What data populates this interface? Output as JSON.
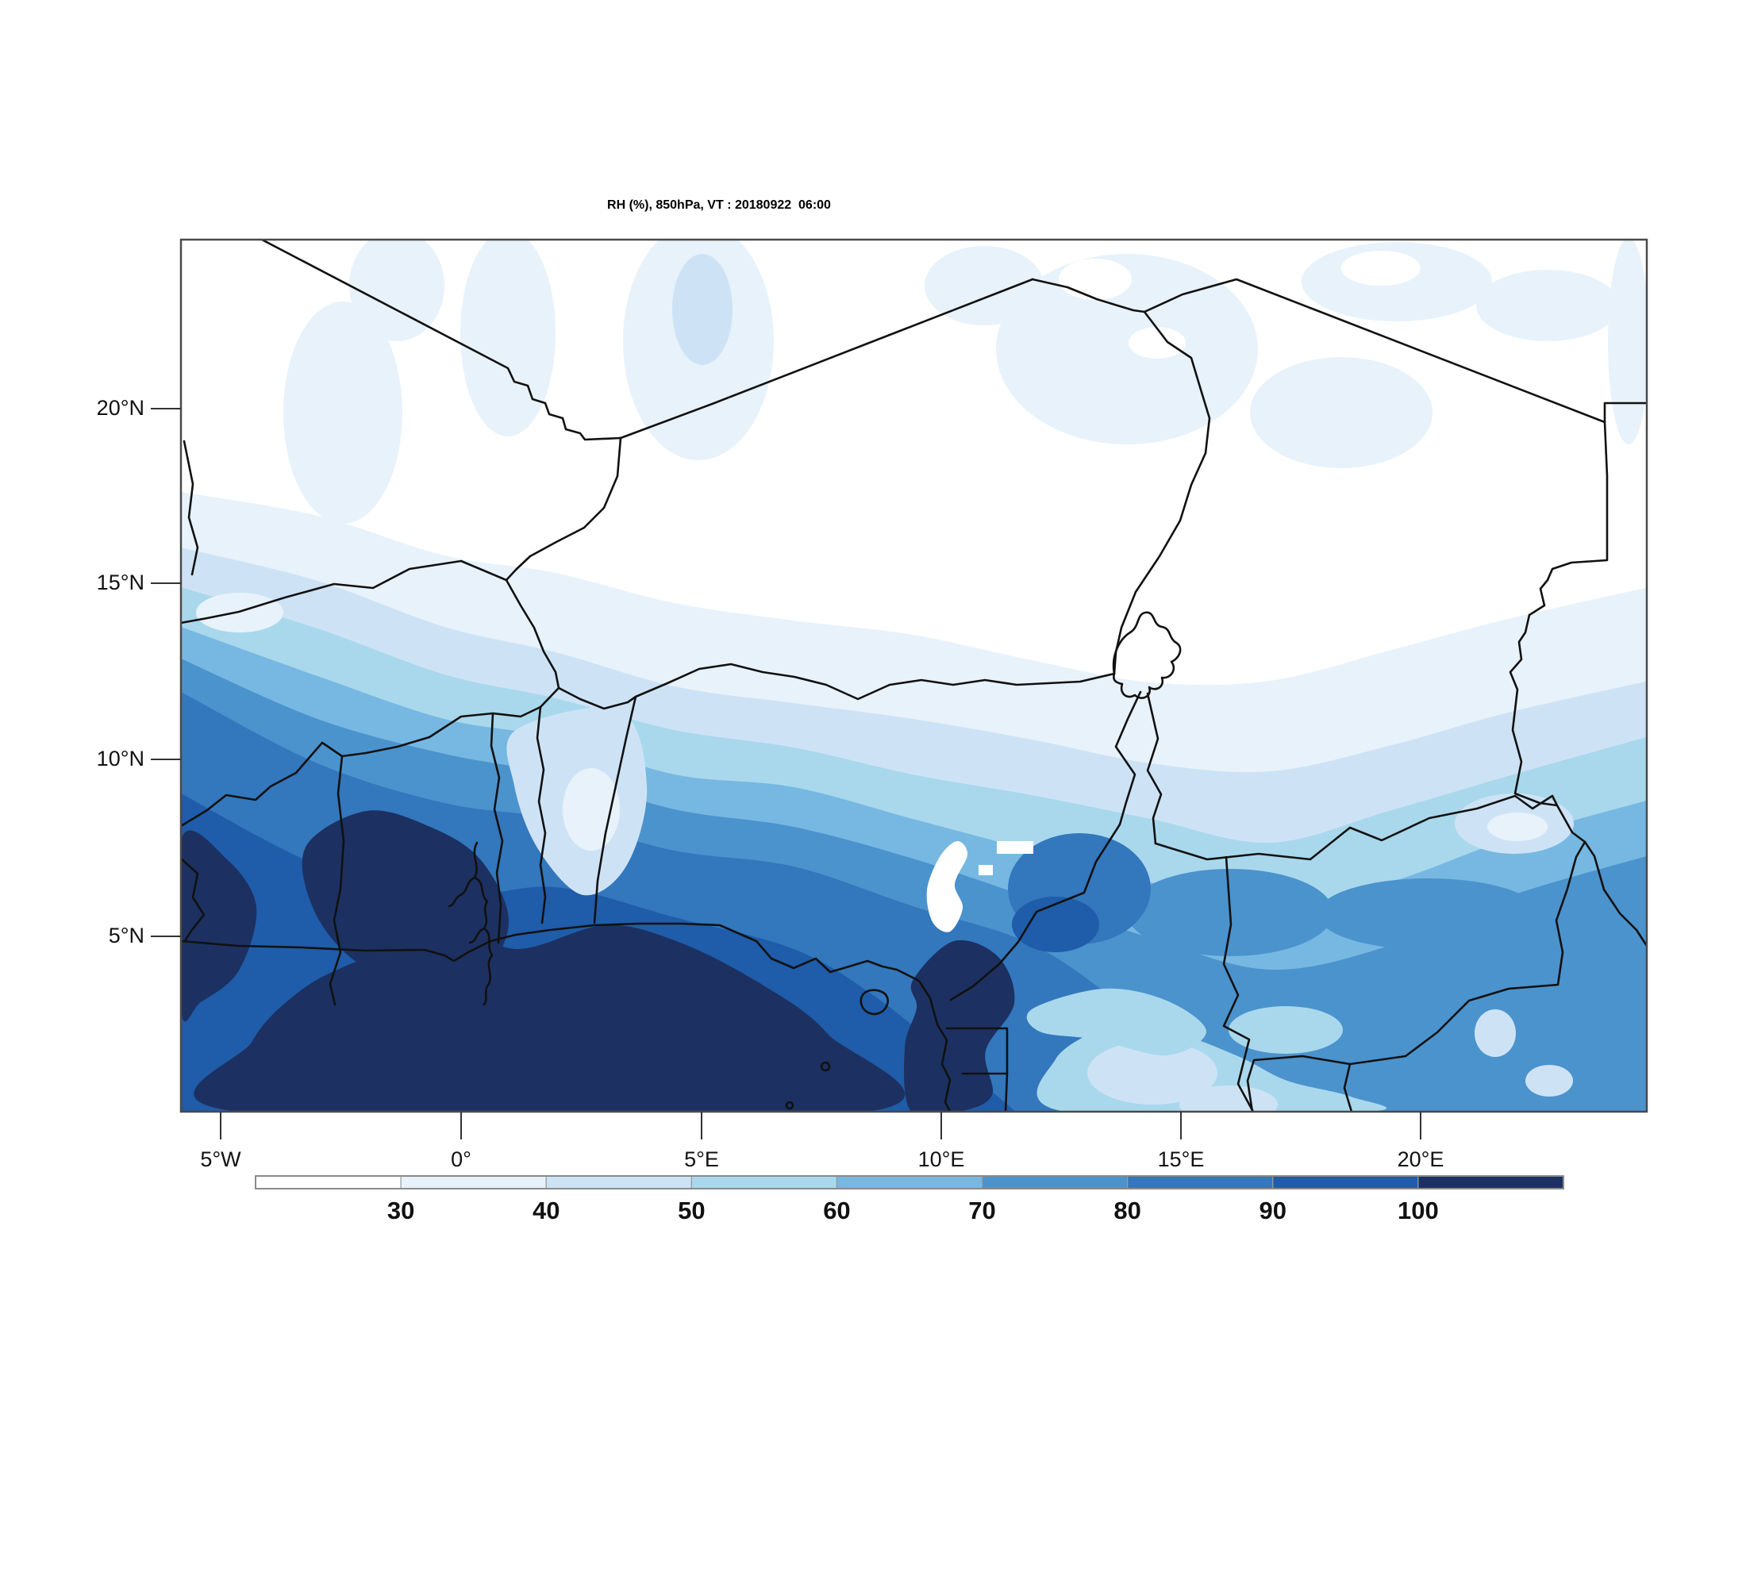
{
  "title": "RH (%), 850hPa, VT : 20180922  06:00",
  "axes": {
    "lat_ticks": [
      "20°N",
      "15°N",
      "10°N",
      "5°N"
    ],
    "lon_ticks": [
      "5°W",
      "0°",
      "5°E",
      "10°E",
      "15°E",
      "20°E"
    ]
  },
  "colorbar": {
    "tick_labels": [
      "30",
      "40",
      "50",
      "60",
      "70",
      "80",
      "90",
      "100"
    ],
    "colors": [
      "#ffffff",
      "#e8f2fb",
      "#cde3f5",
      "#a9d8ec",
      "#77b8e2",
      "#4b93cd",
      "#3377bd",
      "#1f5ca9",
      "#1c3161"
    ],
    "cell_border_color": "#9a9a9a",
    "outer_border_color": "#8a8a8a"
  },
  "map_style": {
    "border_color": "#111111",
    "frame_color": "#4a4a4a",
    "tick_color": "#333333"
  },
  "chart_data": {
    "type": "heatmap",
    "subtype": "filled_contour_weather_map",
    "title": "RH (%), 850hPa, VT : 20180922  06:00",
    "variable": "Relative humidity",
    "units": "%",
    "pressure_level": "850hPa",
    "valid_time": "20180922 06:00",
    "region": "West and Central Africa",
    "xlabel": "",
    "ylabel": "",
    "x_tick_labels": [
      "5°W",
      "0°",
      "5°E",
      "10°E",
      "15°E",
      "20°E"
    ],
    "y_tick_labels": [
      "20°N",
      "15°N",
      "10°N",
      "5°N"
    ],
    "lon_range_deg_east": [
      -5.9,
      24.8
    ],
    "lat_range_deg_north": [
      0.0,
      24.7
    ],
    "contour_levels": [
      30,
      40,
      50,
      60,
      70,
      80,
      90,
      100
    ],
    "palette": [
      "#ffffff",
      "#e8f2fb",
      "#cde3f5",
      "#a9d8ec",
      "#77b8e2",
      "#4b93cd",
      "#3377bd",
      "#1f5ca9",
      "#1c3161"
    ],
    "legend_position": "bottom",
    "grid": false,
    "approx_grid": {
      "lons_deg_east": [
        -5,
        0,
        5,
        10,
        15,
        20,
        24
      ],
      "lats_deg_north": [
        22,
        18,
        15,
        12,
        10,
        8,
        6,
        4,
        2
      ],
      "rh_percent": [
        [
          25,
          25,
          25,
          25,
          25,
          25,
          30
        ],
        [
          25,
          25,
          30,
          30,
          25,
          30,
          35
        ],
        [
          40,
          35,
          30,
          35,
          35,
          40,
          45
        ],
        [
          60,
          50,
          45,
          45,
          45,
          50,
          55
        ],
        [
          75,
          65,
          60,
          55,
          50,
          55,
          60
        ],
        [
          85,
          80,
          70,
          65,
          60,
          65,
          65
        ],
        [
          95,
          90,
          85,
          75,
          70,
          70,
          70
        ],
        [
          95,
          100,
          95,
          90,
          75,
          70,
          75
        ],
        [
          95,
          100,
          100,
          95,
          80,
          75,
          80
        ]
      ]
    },
    "graphic_features": [
      "dry air below 30% over the Sahara in the north (white)",
      "RH increases southward in banded contours",
      "moistest air (90-100% and above) along the Gulf of Guinea coast",
      "lighter dry tongue through Togo/Benin",
      "small white void patch over the Cameroon highlands",
      "country borders, coastline, Lake Chad and Lake Volta outlines drawn in black"
    ]
  }
}
